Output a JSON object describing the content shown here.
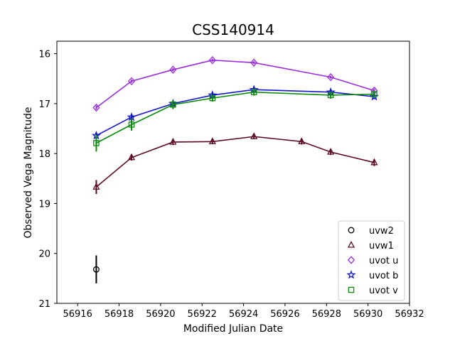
{
  "chart_data": {
    "type": "scatter",
    "title": "CSS140914",
    "xlabel": "Modified Julian Date",
    "ylabel": "Observed Vega Magnitude",
    "xlim": [
      56915,
      56932
    ],
    "ylim": [
      21,
      15.75
    ],
    "y_inverted": true,
    "grid": false,
    "legend_position": "bottom-right",
    "xticks": [
      56916,
      56918,
      56920,
      56922,
      56924,
      56926,
      56928,
      56930,
      56932
    ],
    "yticks": [
      16,
      17,
      18,
      19,
      20,
      21
    ],
    "series": [
      {
        "name": "uvw2",
        "marker": "circle",
        "color": "#000000",
        "connected": false,
        "points": [
          {
            "x": 56916.9,
            "y": 20.32,
            "err": 0.28
          }
        ]
      },
      {
        "name": "uvw1",
        "marker": "triangle",
        "color": "#5c0a24",
        "connected": true,
        "points": [
          {
            "x": 56916.9,
            "y": 18.67,
            "err": 0.14
          },
          {
            "x": 56918.6,
            "y": 18.08,
            "err": 0.06
          },
          {
            "x": 56920.6,
            "y": 17.77,
            "err": 0.06
          },
          {
            "x": 56922.5,
            "y": 17.76,
            "err": 0.05
          },
          {
            "x": 56924.5,
            "y": 17.66,
            "err": 0.05
          },
          {
            "x": 56926.8,
            "y": 17.76,
            "err": 0.06
          },
          {
            "x": 56928.2,
            "y": 17.97,
            "err": 0.06
          },
          {
            "x": 56930.3,
            "y": 18.18,
            "err": 0.07
          }
        ]
      },
      {
        "name": "uvot u",
        "marker": "diamond",
        "color": "#9a2fdb",
        "connected": true,
        "points": [
          {
            "x": 56916.9,
            "y": 17.08,
            "err": 0.04
          },
          {
            "x": 56918.6,
            "y": 16.55,
            "err": 0.03
          },
          {
            "x": 56920.6,
            "y": 16.32,
            "err": 0.03
          },
          {
            "x": 56922.5,
            "y": 16.13,
            "err": 0.03
          },
          {
            "x": 56924.5,
            "y": 16.18,
            "err": 0.03
          },
          {
            "x": 56928.2,
            "y": 16.47,
            "err": 0.03
          },
          {
            "x": 56930.3,
            "y": 16.74,
            "err": 0.04
          }
        ]
      },
      {
        "name": "uvot b",
        "marker": "star",
        "color": "#1515c8",
        "connected": true,
        "points": [
          {
            "x": 56916.9,
            "y": 17.64,
            "err": 0.06
          },
          {
            "x": 56918.6,
            "y": 17.27,
            "err": 0.05
          },
          {
            "x": 56920.6,
            "y": 17.0,
            "err": 0.05
          },
          {
            "x": 56922.5,
            "y": 16.83,
            "err": 0.04
          },
          {
            "x": 56924.5,
            "y": 16.72,
            "err": 0.04
          },
          {
            "x": 56928.2,
            "y": 16.77,
            "err": 0.04
          },
          {
            "x": 56930.3,
            "y": 16.86,
            "err": 0.05
          }
        ]
      },
      {
        "name": "uvot v",
        "marker": "square",
        "color": "#0a8a0a",
        "connected": true,
        "points": [
          {
            "x": 56916.9,
            "y": 17.79,
            "err": 0.17
          },
          {
            "x": 56918.6,
            "y": 17.42,
            "err": 0.12
          },
          {
            "x": 56920.6,
            "y": 17.02,
            "err": 0.09
          },
          {
            "x": 56922.5,
            "y": 16.89,
            "err": 0.07
          },
          {
            "x": 56924.5,
            "y": 16.77,
            "err": 0.07
          },
          {
            "x": 56928.2,
            "y": 16.83,
            "err": 0.07
          },
          {
            "x": 56930.3,
            "y": 16.81,
            "err": 0.07
          }
        ]
      }
    ]
  }
}
